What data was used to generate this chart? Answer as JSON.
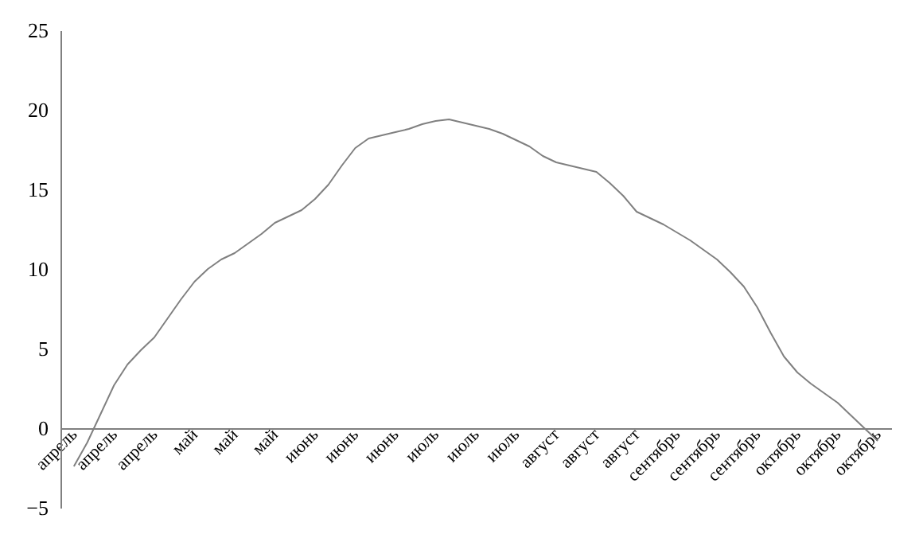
{
  "chart_data": {
    "type": "line",
    "categories": [
      "апрель",
      null,
      null,
      "апрель",
      null,
      null,
      "апрель",
      null,
      null,
      "май",
      null,
      null,
      "май",
      null,
      null,
      "май",
      null,
      null,
      "июнь",
      null,
      null,
      "июнь",
      null,
      null,
      "июнь",
      null,
      null,
      "июль",
      null,
      null,
      "июль",
      null,
      null,
      "июль",
      null,
      null,
      "август",
      null,
      null,
      "август",
      null,
      null,
      "август",
      null,
      null,
      "сентябрь",
      null,
      null,
      "сентябрь",
      null,
      null,
      "сентябрь",
      null,
      null,
      "октябрь",
      null,
      null,
      "октябрь",
      null,
      null,
      "октябрь"
    ],
    "series": [
      {
        "color": "#808080",
        "values": [
          -2.4,
          -0.9,
          0.9,
          2.7,
          4.0,
          4.9,
          5.7,
          6.9,
          8.1,
          9.2,
          10.0,
          10.6,
          11.0,
          11.6,
          12.2,
          12.9,
          13.3,
          13.7,
          14.4,
          15.3,
          16.5,
          17.6,
          18.2,
          18.4,
          18.6,
          18.8,
          19.1,
          19.3,
          19.4,
          19.2,
          19.0,
          18.8,
          18.5,
          18.1,
          17.7,
          17.1,
          16.7,
          16.5,
          16.3,
          16.1,
          15.4,
          14.6,
          13.6,
          13.2,
          12.8,
          12.3,
          11.8,
          11.2,
          10.6,
          9.8,
          8.9,
          7.6,
          6.0,
          4.5,
          3.5,
          2.8,
          2.2,
          1.6,
          0.8,
          0.0,
          -0.8
        ]
      }
    ],
    "ylim": [
      -5,
      25
    ],
    "yticks": [
      -5,
      0,
      5,
      10,
      15,
      20,
      25
    ],
    "grid": false,
    "marker": "none",
    "line_style": "solid"
  }
}
